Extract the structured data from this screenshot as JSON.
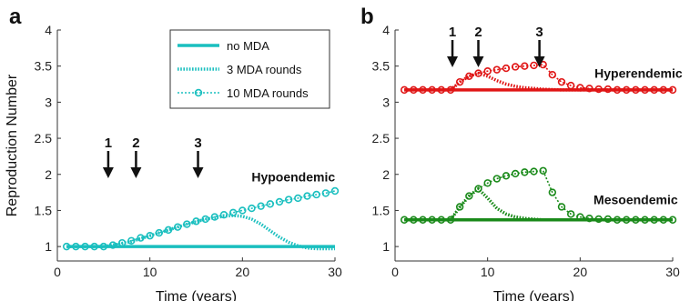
{
  "chart_data": [
    {
      "panel": "a",
      "type": "line",
      "xlabel": "Time (years)",
      "ylabel": "Reproduction Number",
      "xlim": [
        0,
        30
      ],
      "ylim": [
        0.8,
        4
      ],
      "xticks": [
        0,
        10,
        20,
        30
      ],
      "yticks": [
        1,
        1.5,
        2,
        2.5,
        3,
        3.5,
        4
      ],
      "color": "#1abfbf",
      "annotation": "Hypoendemic",
      "arrows": [
        {
          "label": "1",
          "x": 5.5
        },
        {
          "label": "2",
          "x": 8.5
        },
        {
          "label": "3",
          "x": 15.2
        }
      ],
      "legend": {
        "placement": "top-right",
        "entries": [
          "no MDA",
          "3 MDA rounds",
          "10 MDA rounds"
        ]
      },
      "series": [
        {
          "name": "no MDA",
          "style": "solid",
          "x": [
            1,
            30
          ],
          "y": [
            1,
            1
          ]
        },
        {
          "name": "3 MDA rounds",
          "style": "dotted",
          "x": [
            1,
            5,
            6,
            8,
            10,
            12,
            14,
            16,
            18,
            19,
            20,
            21,
            22,
            23,
            24,
            25,
            26,
            27,
            28,
            29,
            30
          ],
          "y": [
            1.0,
            1.0,
            1.02,
            1.07,
            1.15,
            1.23,
            1.31,
            1.38,
            1.42,
            1.43,
            1.42,
            1.38,
            1.31,
            1.22,
            1.13,
            1.06,
            1.01,
            0.98,
            0.97,
            0.97,
            0.97
          ]
        },
        {
          "name": "10 MDA rounds",
          "style": "dotted-circle",
          "x": [
            1,
            2,
            3,
            4,
            5,
            6,
            7,
            8,
            9,
            10,
            11,
            12,
            13,
            14,
            15,
            16,
            17,
            18,
            19,
            20,
            21,
            22,
            23,
            24,
            25,
            26,
            27,
            28,
            29,
            30
          ],
          "y": [
            1.0,
            1.0,
            1.0,
            1.0,
            1.0,
            1.02,
            1.05,
            1.08,
            1.12,
            1.15,
            1.19,
            1.23,
            1.27,
            1.31,
            1.35,
            1.38,
            1.41,
            1.44,
            1.47,
            1.5,
            1.53,
            1.56,
            1.59,
            1.62,
            1.65,
            1.67,
            1.7,
            1.72,
            1.74,
            1.77
          ]
        }
      ]
    },
    {
      "panel": "b",
      "type": "line",
      "xlabel": "Time (years)",
      "ylabel": "",
      "xlim": [
        0,
        30
      ],
      "ylim": [
        0.8,
        4
      ],
      "xticks": [
        0,
        10,
        20,
        30
      ],
      "yticks": [
        1,
        1.5,
        2,
        2.5,
        3,
        3.5,
        4
      ],
      "arrows": [
        {
          "label": "1",
          "x": 6.2
        },
        {
          "label": "2",
          "x": 9.0
        },
        {
          "label": "3",
          "x": 15.6
        }
      ],
      "groups": [
        {
          "annotation": "Hyperendemic",
          "color": "#e01515",
          "series": [
            {
              "name": "no MDA",
              "style": "solid",
              "x": [
                1,
                30
              ],
              "y": [
                3.17,
                3.17
              ]
            },
            {
              "name": "3 MDA rounds",
              "style": "dotted",
              "x": [
                1,
                6,
                7,
                8,
                9,
                10,
                11,
                12,
                13,
                14,
                15,
                16,
                18,
                20,
                30
              ],
              "y": [
                3.17,
                3.17,
                3.28,
                3.36,
                3.4,
                3.36,
                3.3,
                3.25,
                3.22,
                3.2,
                3.19,
                3.18,
                3.17,
                3.17,
                3.17
              ]
            },
            {
              "name": "10 MDA rounds",
              "style": "dotted-circle",
              "x": [
                1,
                2,
                3,
                4,
                5,
                6,
                7,
                8,
                9,
                10,
                11,
                12,
                13,
                14,
                15,
                16,
                17,
                18,
                19,
                20,
                21,
                22,
                23,
                24,
                25,
                26,
                27,
                28,
                29,
                30
              ],
              "y": [
                3.17,
                3.17,
                3.17,
                3.17,
                3.17,
                3.17,
                3.28,
                3.36,
                3.4,
                3.43,
                3.45,
                3.47,
                3.49,
                3.5,
                3.51,
                3.52,
                3.38,
                3.28,
                3.23,
                3.2,
                3.19,
                3.18,
                3.18,
                3.17,
                3.17,
                3.17,
                3.17,
                3.17,
                3.17,
                3.17
              ]
            }
          ]
        },
        {
          "annotation": "Mesoendemic",
          "color": "#1a8a1a",
          "series": [
            {
              "name": "no MDA",
              "style": "solid",
              "x": [
                1,
                30
              ],
              "y": [
                1.37,
                1.37
              ]
            },
            {
              "name": "3 MDA rounds",
              "style": "dotted",
              "x": [
                1,
                6,
                7,
                8,
                9,
                10,
                11,
                12,
                13,
                14,
                15,
                16,
                18,
                20,
                30
              ],
              "y": [
                1.37,
                1.37,
                1.55,
                1.7,
                1.8,
                1.67,
                1.53,
                1.45,
                1.41,
                1.39,
                1.38,
                1.37,
                1.37,
                1.37,
                1.37
              ]
            },
            {
              "name": "10 MDA rounds",
              "style": "dotted-circle",
              "x": [
                1,
                2,
                3,
                4,
                5,
                6,
                7,
                8,
                9,
                10,
                11,
                12,
                13,
                14,
                15,
                16,
                17,
                18,
                19,
                20,
                21,
                22,
                23,
                24,
                25,
                26,
                27,
                28,
                29,
                30
              ],
              "y": [
                1.37,
                1.37,
                1.37,
                1.37,
                1.37,
                1.37,
                1.55,
                1.7,
                1.8,
                1.88,
                1.94,
                1.98,
                2.01,
                2.03,
                2.04,
                2.05,
                1.75,
                1.55,
                1.45,
                1.41,
                1.39,
                1.38,
                1.38,
                1.37,
                1.37,
                1.37,
                1.37,
                1.37,
                1.37,
                1.37
              ]
            }
          ]
        }
      ]
    }
  ]
}
